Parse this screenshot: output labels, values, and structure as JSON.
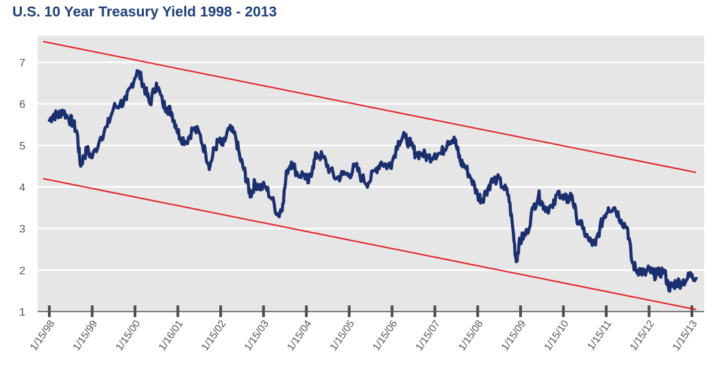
{
  "chart_data": {
    "type": "line",
    "title": "U.S. 10 Year Treasury Yield 1998 - 2013",
    "xlabel": "",
    "ylabel": "",
    "ylim": [
      1,
      7.5
    ],
    "yticks": [
      1,
      2,
      3,
      4,
      5,
      6,
      7
    ],
    "grid": "horizontal",
    "colors": {
      "series": "#1b2f6e",
      "trendlines": "#e31e24",
      "plot_background": "#e6e6e7",
      "title": "#1f3f7a"
    },
    "xtick_labels": [
      "1/15/98",
      "1/15/99",
      "1/15/00",
      "1/16/01",
      "1/15/02",
      "1/15/03",
      "1/15/04",
      "1/15/05",
      "1/15/06",
      "1/15/07",
      "1/15/08",
      "1/15/09",
      "1/15/10",
      "1/15/11",
      "1/15/12",
      "1/15/13"
    ],
    "series": [
      {
        "x": [
          1998.0,
          1998.1,
          1998.2,
          1998.3,
          1998.45,
          1998.55,
          1998.65,
          1998.72,
          1998.8,
          1998.88,
          1999.0,
          1999.2,
          1999.35,
          1999.5,
          1999.65,
          1999.8,
          1999.9,
          2000.05,
          2000.15,
          2000.25,
          2000.35,
          2000.5,
          2000.65,
          2000.75,
          2000.85,
          2000.95,
          2001.05,
          2001.2,
          2001.35,
          2001.5,
          2001.65,
          2001.75,
          2001.85,
          2001.95,
          2002.05,
          2002.2,
          2002.35,
          2002.45,
          2002.55,
          2002.62,
          2002.7,
          2002.8,
          2002.9,
          2003.05,
          2003.2,
          2003.35,
          2003.45,
          2003.55,
          2003.65,
          2003.8,
          2003.95,
          2004.05,
          2004.15,
          2004.25,
          2004.4,
          2004.55,
          2004.7,
          2004.85,
          2005.0,
          2005.15,
          2005.3,
          2005.45,
          2005.6,
          2005.75,
          2005.9,
          2006.0,
          2006.15,
          2006.3,
          2006.45,
          2006.55,
          2006.7,
          2006.85,
          2007.0,
          2007.15,
          2007.3,
          2007.45,
          2007.52,
          2007.6,
          2007.7,
          2007.85,
          2008.0,
          2008.1,
          2008.2,
          2008.3,
          2008.45,
          2008.6,
          2008.72,
          2008.82,
          2008.9,
          2008.96,
          2009.05,
          2009.15,
          2009.3,
          2009.42,
          2009.5,
          2009.6,
          2009.75,
          2009.9,
          2010.0,
          2010.1,
          2010.2,
          2010.3,
          2010.45,
          2010.6,
          2010.75,
          2010.85,
          2010.95,
          2011.05,
          2011.2,
          2011.35,
          2011.5,
          2011.6,
          2011.7,
          2011.8,
          2011.9,
          2012.0,
          2012.1,
          2012.2,
          2012.35,
          2012.45,
          2012.55,
          2012.62,
          2012.75,
          2012.9,
          2013.0,
          2013.1
        ],
        "y": [
          5.6,
          5.75,
          5.7,
          5.85,
          5.65,
          5.55,
          5.3,
          4.55,
          4.7,
          4.9,
          4.7,
          5.2,
          5.45,
          5.9,
          6.0,
          6.1,
          6.4,
          6.8,
          6.6,
          6.3,
          6.0,
          6.5,
          6.0,
          5.9,
          5.8,
          5.5,
          5.2,
          5.1,
          5.4,
          5.3,
          4.8,
          4.5,
          4.9,
          5.1,
          5.0,
          5.4,
          5.2,
          4.7,
          4.4,
          4.1,
          3.8,
          4.1,
          4.0,
          4.0,
          3.7,
          3.3,
          3.6,
          4.4,
          4.6,
          4.3,
          4.3,
          4.1,
          4.5,
          4.8,
          4.7,
          4.4,
          4.2,
          4.3,
          4.3,
          4.5,
          4.2,
          4.1,
          4.4,
          4.6,
          4.5,
          4.6,
          5.1,
          5.2,
          5.0,
          4.8,
          4.8,
          4.7,
          4.8,
          4.8,
          5.1,
          5.2,
          4.9,
          4.6,
          4.5,
          4.2,
          3.8,
          3.7,
          3.9,
          4.1,
          4.2,
          4.0,
          3.8,
          3.0,
          2.2,
          2.6,
          2.8,
          2.9,
          3.5,
          3.8,
          3.6,
          3.5,
          3.5,
          3.9,
          3.7,
          3.7,
          3.8,
          3.3,
          3.0,
          2.7,
          2.6,
          3.0,
          3.3,
          3.5,
          3.5,
          3.2,
          3.0,
          2.2,
          2.0,
          2.0,
          1.9,
          2.0,
          1.9,
          1.9,
          2.0,
          1.6,
          1.6,
          1.7,
          1.7,
          1.8,
          1.9,
          1.8
        ]
      }
    ],
    "trendlines": [
      {
        "x": [
          1998.0,
          2013.0
        ],
        "y": [
          7.5,
          4.35
        ]
      },
      {
        "x": [
          1998.0,
          2013.0
        ],
        "y": [
          4.2,
          1.05
        ]
      }
    ]
  }
}
